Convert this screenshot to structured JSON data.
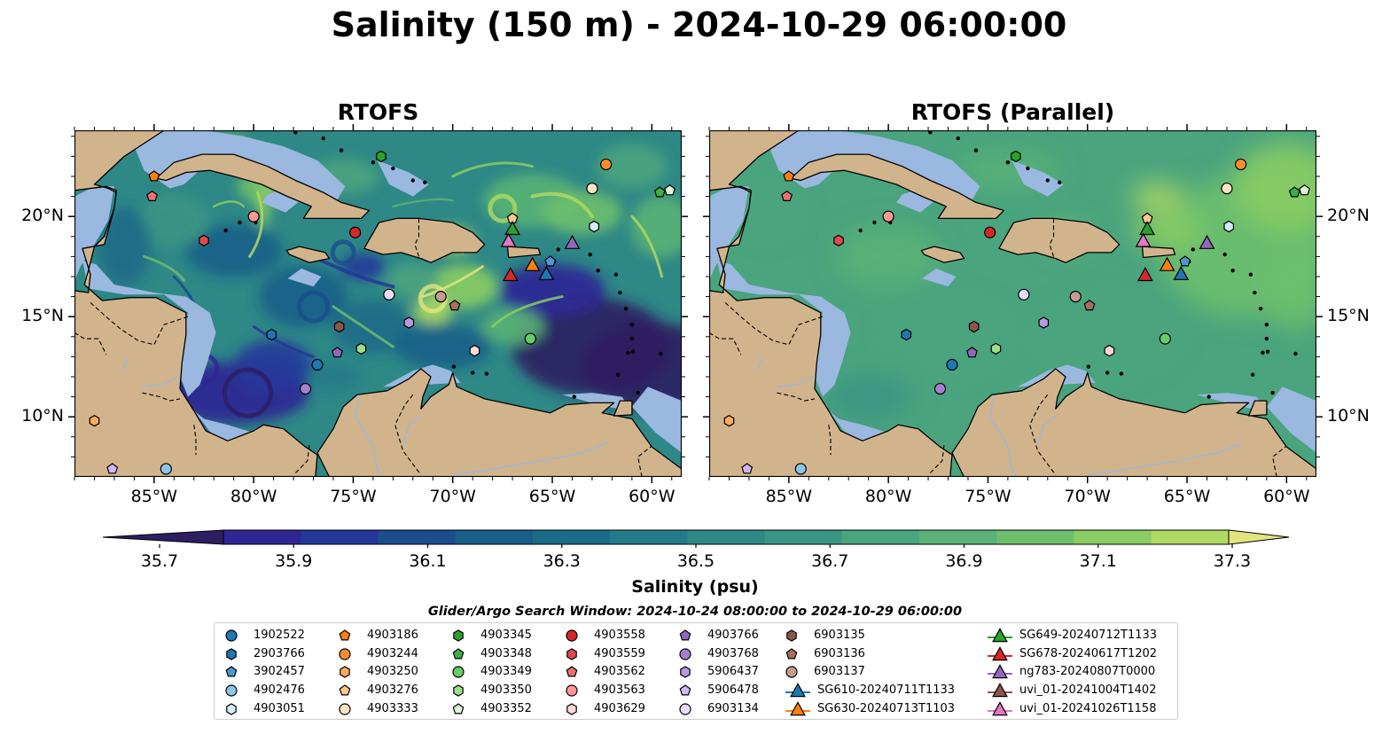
{
  "figure": {
    "title": "Salinity (150 m) - 2024-10-29 06:00:00"
  },
  "panels": [
    {
      "title": "RTOFS",
      "style": "eddy"
    },
    {
      "title": "RTOFS (Parallel)",
      "style": "smooth"
    }
  ],
  "axes": {
    "lon_ticks": [
      {
        "value": -85,
        "label": "85°W"
      },
      {
        "value": -80,
        "label": "80°W"
      },
      {
        "value": -75,
        "label": "75°W"
      },
      {
        "value": -70,
        "label": "70°W"
      },
      {
        "value": -65,
        "label": "65°W"
      },
      {
        "value": -60,
        "label": "60°W"
      }
    ],
    "lat_ticks": [
      {
        "value": 20,
        "label": "20°N"
      },
      {
        "value": 15,
        "label": "15°N"
      },
      {
        "value": 10,
        "label": "10°N"
      }
    ],
    "lon_range": [
      -89,
      -58.5
    ],
    "lat_range": [
      7,
      24.3
    ]
  },
  "colorbar": {
    "label": "Salinity (psu)",
    "range": [
      35.6,
      37.4
    ],
    "extend": "both",
    "colors": [
      "#2d1e62",
      "#2e2694",
      "#24389a",
      "#1b4c8c",
      "#175f88",
      "#1c6c88",
      "#247a88",
      "#2e8886",
      "#3b9584",
      "#4aa47e",
      "#5ab276",
      "#6dbf6d",
      "#8acd64",
      "#b0d963",
      "#e2e57e"
    ],
    "ticks": [
      {
        "value": 35.7,
        "label": "35.7"
      },
      {
        "value": 35.9,
        "label": "35.9"
      },
      {
        "value": 36.1,
        "label": "36.1"
      },
      {
        "value": 36.3,
        "label": "36.3"
      },
      {
        "value": 36.5,
        "label": "36.5"
      },
      {
        "value": 36.7,
        "label": "36.7"
      },
      {
        "value": 36.9,
        "label": "36.9"
      },
      {
        "value": 37.1,
        "label": "37.1"
      },
      {
        "value": 37.3,
        "label": "37.3"
      }
    ]
  },
  "search_window": "Glider/Argo Search Window: 2024-10-24 08:00:00 to 2024-10-29 06:00:00",
  "colors": {
    "land": "#d2b48c",
    "shelf": "#9ab8e0",
    "coast": "#000000"
  },
  "legend": {
    "columns": [
      [
        {
          "label": "1902522",
          "marker": "circle",
          "color": "#1f77b4"
        },
        {
          "label": "2903766",
          "marker": "hexagon",
          "color": "#1f77b4"
        },
        {
          "label": "3902457",
          "marker": "pentagon",
          "color": "#4f97d4"
        },
        {
          "label": "4902476",
          "marker": "circle",
          "color": "#8ec4e8"
        },
        {
          "label": "4903051",
          "marker": "hexagon",
          "color": "#d4ebf8"
        }
      ],
      [
        {
          "label": "4903186",
          "marker": "pentagon",
          "color": "#ff7f0e"
        },
        {
          "label": "4903244",
          "marker": "circle",
          "color": "#ff8c2e"
        },
        {
          "label": "4903250",
          "marker": "hexagon",
          "color": "#ffaa5e"
        },
        {
          "label": "4903276",
          "marker": "pentagon",
          "color": "#ffc78e"
        },
        {
          "label": "4903333",
          "marker": "circle",
          "color": "#ffe3c7"
        }
      ],
      [
        {
          "label": "4903345",
          "marker": "hexagon",
          "color": "#2ca02c"
        },
        {
          "label": "4903348",
          "marker": "pentagon",
          "color": "#3cb043"
        },
        {
          "label": "4903349",
          "marker": "circle",
          "color": "#66cc66"
        },
        {
          "label": "4903350",
          "marker": "hexagon",
          "color": "#98df8a"
        },
        {
          "label": "4903352",
          "marker": "pentagon",
          "color": "#dcf5d5"
        }
      ],
      [
        {
          "label": "4903558",
          "marker": "circle",
          "color": "#d62728"
        },
        {
          "label": "4903559",
          "marker": "hexagon",
          "color": "#e04a4a"
        },
        {
          "label": "4903562",
          "marker": "pentagon",
          "color": "#ee7070"
        },
        {
          "label": "4903563",
          "marker": "circle",
          "color": "#ff9896"
        },
        {
          "label": "4903629",
          "marker": "hexagon",
          "color": "#ffd9d8"
        }
      ],
      [
        {
          "label": "4903766",
          "marker": "pentagon",
          "color": "#9467bd"
        },
        {
          "label": "4903768",
          "marker": "circle",
          "color": "#a57fd0"
        },
        {
          "label": "5906437",
          "marker": "hexagon",
          "color": "#bb97e0"
        },
        {
          "label": "5906478",
          "marker": "pentagon",
          "color": "#d2b7f0"
        },
        {
          "label": "6903134",
          "marker": "circle",
          "color": "#ecdcfb"
        }
      ],
      [
        {
          "label": "6903135",
          "marker": "hexagon",
          "color": "#8c564b"
        },
        {
          "label": "6903136",
          "marker": "pentagon",
          "color": "#a86f60"
        },
        {
          "label": "6903137",
          "marker": "circle",
          "color": "#c49c94"
        },
        {
          "label": "SG610-20240711T1133",
          "marker": "triangle",
          "color": "#1f77b4",
          "line": true
        },
        {
          "label": "SG630-20240713T1103",
          "marker": "triangle",
          "color": "#ff7f0e",
          "line": true
        }
      ],
      [
        {
          "label": "SG649-20240712T1133",
          "marker": "triangle",
          "color": "#2ca02c",
          "line": true
        },
        {
          "label": "SG678-20240617T1202",
          "marker": "triangle",
          "color": "#d62728",
          "line": true
        },
        {
          "label": "ng783-20240807T0000",
          "marker": "triangle",
          "color": "#9467bd",
          "line": true
        },
        {
          "label": "uvi_01-20241004T1402",
          "marker": "triangle",
          "color": "#8c564b",
          "line": true
        },
        {
          "label": "uvi_01-20241026T1158",
          "marker": "triangle",
          "color": "#e377c2",
          "line": true
        }
      ]
    ]
  },
  "observations": [
    {
      "label": "4903345",
      "lon": -73.6,
      "lat": 23.0,
      "marker": "hexagon",
      "color": "#2ca02c"
    },
    {
      "label": "4903244",
      "lon": -62.3,
      "lat": 22.6,
      "marker": "circle",
      "color": "#ff8c2e"
    },
    {
      "label": "4903186",
      "lon": -85.0,
      "lat": 22.0,
      "marker": "pentagon",
      "color": "#ff7f0e"
    },
    {
      "label": "4903333",
      "lon": -63.0,
      "lat": 21.4,
      "marker": "circle",
      "color": "#ffe3c7"
    },
    {
      "label": "4903348",
      "lon": -59.6,
      "lat": 21.2,
      "marker": "pentagon",
      "color": "#3cb043"
    },
    {
      "label": "4903352",
      "lon": -59.1,
      "lat": 21.3,
      "marker": "pentagon",
      "color": "#dcf5d5"
    },
    {
      "label": "4903562",
      "lon": -85.1,
      "lat": 21.0,
      "marker": "pentagon",
      "color": "#ee7070"
    },
    {
      "label": "4903563",
      "lon": -80.0,
      "lat": 20.0,
      "marker": "circle",
      "color": "#ff9896"
    },
    {
      "label": "4903276",
      "lon": -67.0,
      "lat": 19.9,
      "marker": "pentagon",
      "color": "#ffc78e"
    },
    {
      "label": "4903051",
      "lon": -62.9,
      "lat": 19.5,
      "marker": "hexagon",
      "color": "#d4ebf8"
    },
    {
      "label": "SG649-20240712T1133",
      "lon": -67.0,
      "lat": 19.35,
      "marker": "triangle",
      "color": "#2ca02c"
    },
    {
      "label": "4903558",
      "lon": -74.9,
      "lat": 19.2,
      "marker": "circle",
      "color": "#d62728"
    },
    {
      "label": "4903559",
      "lon": -82.5,
      "lat": 18.8,
      "marker": "hexagon",
      "color": "#e04a4a"
    },
    {
      "label": "uvi_01-20241026T1158",
      "lon": -67.2,
      "lat": 18.75,
      "marker": "triangle",
      "color": "#e377c2"
    },
    {
      "label": "ng783-20240807T0000",
      "lon": -64.0,
      "lat": 18.65,
      "marker": "triangle",
      "color": "#9467bd"
    },
    {
      "label": "SG630-20240713T1103",
      "lon": -66.0,
      "lat": 17.55,
      "marker": "triangle",
      "color": "#ff7f0e"
    },
    {
      "label": "3902457",
      "lon": -65.1,
      "lat": 17.75,
      "marker": "pentagon",
      "color": "#4f97d4"
    },
    {
      "label": "SG678-20240617T1202",
      "lon": -67.1,
      "lat": 17.05,
      "marker": "triangle",
      "color": "#d62728"
    },
    {
      "label": "SG610-20240711T1133",
      "lon": -65.3,
      "lat": 17.1,
      "marker": "triangle",
      "color": "#1f77b4"
    },
    {
      "label": "6903134",
      "lon": -73.2,
      "lat": 16.1,
      "marker": "circle",
      "color": "#ecdcfb"
    },
    {
      "label": "6903137",
      "lon": -70.6,
      "lat": 16.0,
      "marker": "circle",
      "color": "#c49c94"
    },
    {
      "label": "6903136",
      "lon": -69.9,
      "lat": 15.55,
      "marker": "pentagon",
      "color": "#a86f60"
    },
    {
      "label": "5906437",
      "lon": -72.2,
      "lat": 14.7,
      "marker": "hexagon",
      "color": "#bb97e0"
    },
    {
      "label": "6903135",
      "lon": -75.7,
      "lat": 14.5,
      "marker": "hexagon",
      "color": "#8c564b"
    },
    {
      "label": "2903766",
      "lon": -79.1,
      "lat": 14.1,
      "marker": "hexagon",
      "color": "#1f77b4"
    },
    {
      "label": "4903349",
      "lon": -66.1,
      "lat": 13.9,
      "marker": "circle",
      "color": "#66cc66"
    },
    {
      "label": "4903350",
      "lon": -74.6,
      "lat": 13.4,
      "marker": "hexagon",
      "color": "#98df8a"
    },
    {
      "label": "4903629",
      "lon": -68.9,
      "lat": 13.3,
      "marker": "hexagon",
      "color": "#ffd9d8"
    },
    {
      "label": "4903766",
      "lon": -75.8,
      "lat": 13.2,
      "marker": "pentagon",
      "color": "#9467bd"
    },
    {
      "label": "1902522",
      "lon": -76.8,
      "lat": 12.6,
      "marker": "circle",
      "color": "#1f77b4"
    },
    {
      "label": "4903768",
      "lon": -77.4,
      "lat": 11.4,
      "marker": "circle",
      "color": "#a57fd0"
    },
    {
      "label": "4903250",
      "lon": -88.0,
      "lat": 9.8,
      "marker": "hexagon",
      "color": "#ffaa5e"
    },
    {
      "label": "5906478",
      "lon": -87.1,
      "lat": 7.4,
      "marker": "pentagon",
      "color": "#d2b7f0"
    },
    {
      "label": "4902476",
      "lon": -84.4,
      "lat": 7.4,
      "marker": "circle",
      "color": "#8ec4e8"
    }
  ]
}
